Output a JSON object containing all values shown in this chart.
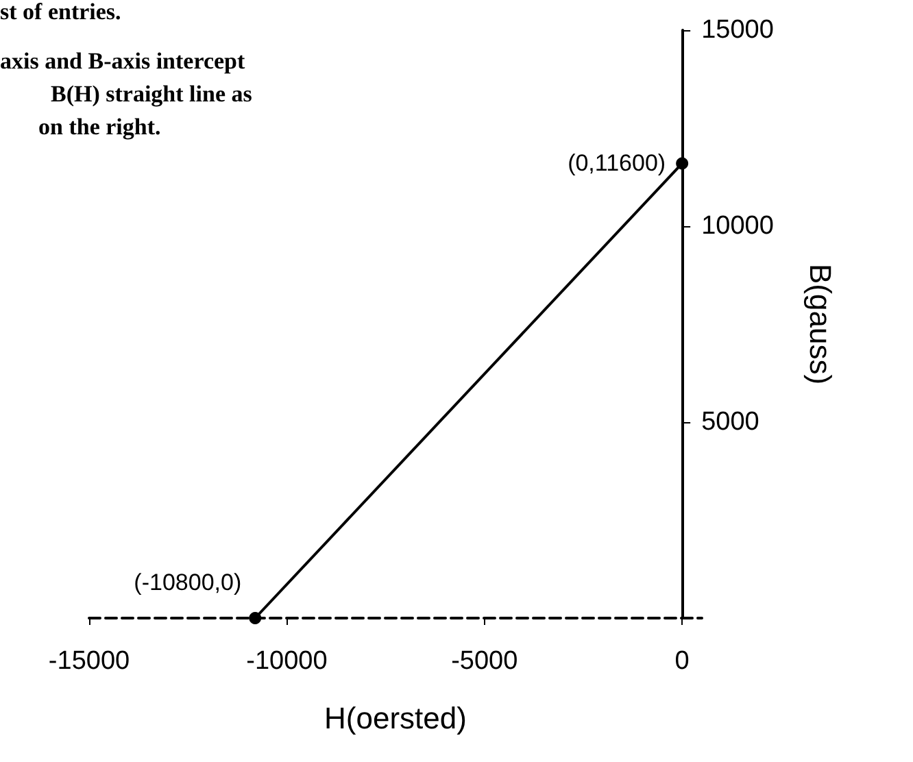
{
  "chart_data": {
    "type": "line",
    "xlabel": "H(oersted)",
    "ylabel": "B(gauss)",
    "annotations": [
      "st of entries.",
      "axis and B-axis intercept",
      "B(H) straight line as",
      "on the right.",
      {
        "text": "(-10800,0)",
        "x": -10800,
        "y": 0
      },
      {
        "text": "(0,11600)",
        "x": 0,
        "y": 11600
      }
    ],
    "series": [
      {
        "color": "#000000",
        "x": [
          -10800,
          0
        ],
        "values": [
          0,
          11600
        ]
      }
    ],
    "xlim": [
      -15000,
      500
    ],
    "xticks": [
      -15000,
      -10000,
      -5000,
      0
    ],
    "ylim": [
      0,
      15000
    ],
    "yticks": [
      {
        "value": 0,
        "label": null
      },
      5000,
      10000,
      15000
    ],
    "grid": false,
    "marker": "circle",
    "line_style": "solid"
  }
}
